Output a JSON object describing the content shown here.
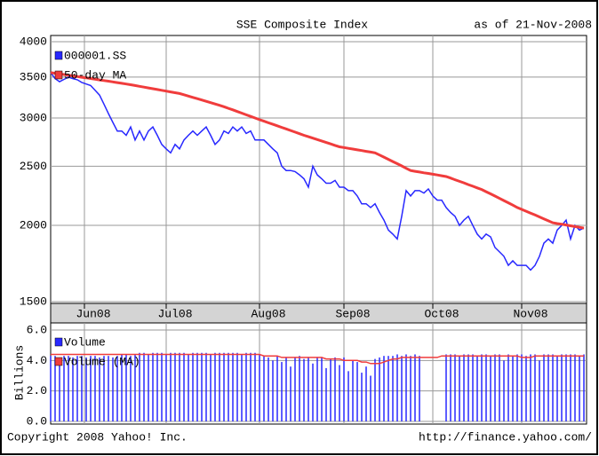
{
  "chart_data": [
    {
      "type": "line",
      "title": "SSE Composite Index",
      "subtitle": "as of 21-Nov-2008",
      "log_scale": true,
      "grid": true,
      "legend": "upper left",
      "xlim": [
        0,
        120
      ],
      "xticks": [
        {
          "value": 7.6,
          "label": "Jun08"
        },
        {
          "value": 26,
          "label": "Jul08"
        },
        {
          "value": 47,
          "label": "Aug08"
        },
        {
          "value": 66,
          "label": "Sep08"
        },
        {
          "value": 86,
          "label": "Oct08"
        },
        {
          "value": 106,
          "label": "Nov08"
        }
      ],
      "ylim": [
        1500,
        4000
      ],
      "yticks": [
        1500,
        2000,
        2500,
        3000,
        3500,
        4000
      ],
      "series": [
        {
          "name": "000001.SS",
          "color": "#2828ff",
          "values": [
            3560,
            3480,
            3440,
            3470,
            3500,
            3480,
            3465,
            3430,
            3410,
            3390,
            3330,
            3270,
            3160,
            3050,
            2950,
            2855,
            2855,
            2810,
            2900,
            2760,
            2855,
            2760,
            2855,
            2900,
            2810,
            2715,
            2670,
            2630,
            2715,
            2670,
            2760,
            2810,
            2855,
            2810,
            2855,
            2900,
            2810,
            2715,
            2760,
            2855,
            2830,
            2900,
            2855,
            2900,
            2830,
            2855,
            2760,
            2760,
            2760,
            2715,
            2670,
            2630,
            2500,
            2460,
            2460,
            2450,
            2420,
            2385,
            2310,
            2500,
            2420,
            2385,
            2345,
            2345,
            2370,
            2310,
            2310,
            2280,
            2280,
            2235,
            2170,
            2170,
            2140,
            2170,
            2100,
            2040,
            1965,
            1935,
            1900,
            2070,
            2280,
            2235,
            2280,
            2280,
            2260,
            2295,
            2235,
            2200,
            2200,
            2140,
            2100,
            2070,
            2000,
            2040,
            2070,
            2000,
            1935,
            1900,
            1935,
            1915,
            1840,
            1810,
            1780,
            1720,
            1750,
            1720,
            1720,
            1720,
            1690,
            1720,
            1780,
            1870,
            1900,
            1870,
            1965,
            2000,
            2040,
            1900,
            2000,
            1965,
            1980
          ]
        },
        {
          "name": "50-day MA",
          "color": "#f03c3c",
          "values": [
            3560,
            3551,
            3542,
            3534,
            3525,
            3516,
            3507,
            3498,
            3490,
            3481,
            3472,
            3463,
            3454,
            3446,
            3437,
            3428,
            3419,
            3410,
            3400,
            3390,
            3380,
            3370,
            3360,
            3350,
            3340,
            3330,
            3320,
            3310,
            3300,
            3290,
            3274,
            3258,
            3242,
            3226,
            3210,
            3194,
            3178,
            3162,
            3146,
            3130,
            3111,
            3093,
            3074,
            3055,
            3036,
            3018,
            2999,
            2980,
            2963,
            2946,
            2929,
            2912,
            2895,
            2878,
            2861,
            2844,
            2827,
            2810,
            2795,
            2780,
            2765,
            2750,
            2735,
            2720,
            2705,
            2690,
            2683,
            2675,
            2668,
            2660,
            2653,
            2645,
            2638,
            2630,
            2609,
            2588,
            2566,
            2545,
            2524,
            2503,
            2481,
            2460,
            2453,
            2446,
            2439,
            2433,
            2426,
            2419,
            2412,
            2405,
            2391,
            2376,
            2362,
            2348,
            2333,
            2319,
            2304,
            2290,
            2271,
            2253,
            2234,
            2215,
            2196,
            2178,
            2159,
            2140,
            2125,
            2110,
            2095,
            2080,
            2065,
            2050,
            2035,
            2020,
            2014,
            2009,
            2003,
            1997,
            1991,
            1986,
            1980
          ]
        }
      ]
    },
    {
      "type": "bar",
      "ylabel": "Billions",
      "grid": true,
      "legend": "upper left",
      "xlim": [
        0,
        120
      ],
      "xticks": [
        7.6,
        26,
        47,
        66,
        86,
        106
      ],
      "ylim": [
        0,
        6
      ],
      "yticks": [
        {
          "value": 0,
          "label": "0.0"
        },
        {
          "value": 2,
          "label": "2.0"
        },
        {
          "value": 4,
          "label": "4.0"
        },
        {
          "value": 6,
          "label": "6.0"
        }
      ],
      "series": [
        {
          "name": "Volume",
          "type": "bar",
          "color": "#2828ff",
          "values": [
            4.3,
            4.3,
            4.2,
            4.3,
            4.3,
            4.2,
            4.3,
            4.3,
            4.2,
            4.3,
            4.3,
            4.2,
            4.3,
            4.3,
            4.2,
            4.3,
            4.4,
            4.4,
            4.3,
            4.4,
            4.5,
            4.5,
            4.4,
            4.5,
            4.5,
            4.5,
            4.4,
            4.5,
            4.5,
            4.5,
            4.5,
            4.4,
            4.5,
            4.5,
            4.5,
            4.5,
            4.4,
            4.5,
            4.5,
            4.5,
            4.5,
            4.5,
            4.5,
            4.4,
            4.5,
            4.5,
            4.5,
            4.4,
            4.3,
            4.2,
            4.0,
            4.3,
            3.9,
            4.2,
            3.6,
            4.2,
            4.3,
            4.1,
            4.2,
            3.8,
            4.2,
            4.2,
            3.5,
            4.1,
            4.2,
            3.7,
            4.2,
            3.3,
            4.0,
            3.9,
            3.2,
            3.6,
            3.0,
            4.1,
            4.2,
            4.3,
            4.3,
            4.3,
            4.4,
            4.3,
            4.4,
            4.3,
            4.4,
            4.3,
            null,
            null,
            null,
            null,
            null,
            4.4,
            4.4,
            4.4,
            4.3,
            4.4,
            4.4,
            4.4,
            4.3,
            4.4,
            4.4,
            4.3,
            4.4,
            4.4,
            4.0,
            4.4,
            4.3,
            4.4,
            4.4,
            4.3,
            4.4,
            4.4,
            4.0,
            4.4,
            4.4,
            4.4,
            4.3,
            4.4,
            4.4,
            4.4,
            4.4,
            4.3,
            4.4
          ]
        },
        {
          "name": "Volume (MA)",
          "type": "line",
          "color": "#f03c3c",
          "values": [
            4.4,
            4.4,
            4.4,
            4.4,
            4.4,
            4.4,
            4.4,
            4.4,
            4.4,
            4.4,
            4.4,
            4.4,
            4.4,
            4.4,
            4.4,
            4.4,
            4.4,
            4.4,
            4.4,
            4.4,
            4.4,
            4.4,
            4.4,
            4.4,
            4.4,
            4.4,
            4.4,
            4.4,
            4.4,
            4.4,
            4.4,
            4.4,
            4.4,
            4.4,
            4.4,
            4.4,
            4.4,
            4.4,
            4.4,
            4.4,
            4.4,
            4.4,
            4.4,
            4.4,
            4.4,
            4.4,
            4.4,
            4.4,
            4.3,
            4.3,
            4.3,
            4.3,
            4.2,
            4.2,
            4.2,
            4.2,
            4.2,
            4.2,
            4.2,
            4.2,
            4.2,
            4.2,
            4.1,
            4.1,
            4.1,
            4.1,
            4.0,
            4.0,
            4.0,
            4.0,
            3.9,
            3.9,
            3.8,
            3.8,
            3.8,
            3.9,
            4.0,
            4.1,
            4.1,
            4.2,
            4.2,
            4.2,
            4.2,
            4.2,
            4.2,
            4.2,
            4.2,
            4.2,
            4.3,
            4.3,
            4.3,
            4.3,
            4.3,
            4.3,
            4.3,
            4.3,
            4.3,
            4.3,
            4.3,
            4.3,
            4.3,
            4.3,
            4.3,
            4.3,
            4.3,
            4.3,
            4.2,
            4.2,
            4.2,
            4.3,
            4.3,
            4.3,
            4.3,
            4.3,
            4.3,
            4.3,
            4.3,
            4.3,
            4.3,
            4.3,
            4.3
          ]
        }
      ]
    }
  ],
  "footer": {
    "copyright": "Copyright 2008 Yahoo! Inc.",
    "url": "http://finance.yahoo.com/"
  }
}
